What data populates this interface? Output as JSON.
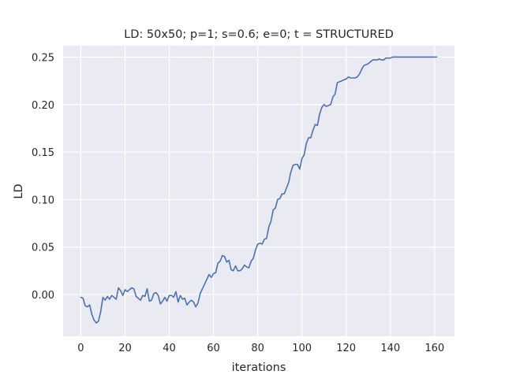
{
  "chart_data": {
    "type": "line",
    "title": "LD: 50x50; p=1; s=0.6; e=0; t = STRUCTURED",
    "xlabel": "iterations",
    "ylabel": "LD",
    "xlim": [
      -8,
      169
    ],
    "ylim": [
      -0.044,
      0.262
    ],
    "xticks": [
      0,
      20,
      40,
      60,
      80,
      100,
      120,
      140,
      160
    ],
    "xtick_labels": [
      "0",
      "20",
      "40",
      "60",
      "80",
      "100",
      "120",
      "140",
      "160"
    ],
    "yticks": [
      0.0,
      0.05,
      0.1,
      0.15,
      0.2,
      0.25
    ],
    "ytick_labels": [
      "0.00",
      "0.05",
      "0.10",
      "0.15",
      "0.20",
      "0.25"
    ],
    "grid": true,
    "background": "#eaeaf2",
    "line_color": "#4c72b0",
    "series": [
      {
        "name": "",
        "x": [
          0,
          1,
          2,
          3,
          4,
          5,
          6,
          7,
          8,
          9,
          10,
          11,
          12,
          13,
          14,
          15,
          16,
          17,
          18,
          19,
          20,
          21,
          22,
          23,
          24,
          25,
          26,
          27,
          28,
          29,
          30,
          31,
          32,
          33,
          34,
          35,
          36,
          37,
          38,
          39,
          40,
          41,
          42,
          43,
          44,
          45,
          46,
          47,
          48,
          49,
          50,
          51,
          52,
          53,
          54,
          55,
          56,
          57,
          58,
          59,
          60,
          61,
          62,
          63,
          64,
          65,
          66,
          67,
          68,
          69,
          70,
          71,
          72,
          73,
          74,
          75,
          76,
          77,
          78,
          79,
          80,
          81,
          82,
          83,
          84,
          85,
          86,
          87,
          88,
          89,
          90,
          91,
          92,
          93,
          94,
          95,
          96,
          97,
          98,
          99,
          100,
          101,
          102,
          103,
          104,
          105,
          106,
          107,
          108,
          109,
          110,
          111,
          112,
          113,
          114,
          115,
          116,
          117,
          118,
          119,
          120,
          121,
          122,
          123,
          124,
          125,
          126,
          127,
          128,
          129,
          130,
          131,
          132,
          133,
          134,
          135,
          136,
          137,
          138,
          139,
          140,
          141,
          142,
          143,
          144,
          145,
          146,
          147,
          148,
          149,
          150,
          151,
          152,
          153,
          154,
          155,
          156,
          157,
          158,
          159,
          160,
          161
        ],
        "y": [
          -0.003,
          -0.004,
          -0.012,
          -0.013,
          -0.011,
          -0.021,
          -0.027,
          -0.03,
          -0.028,
          -0.018,
          -0.003,
          -0.006,
          -0.002,
          -0.005,
          -0.001,
          -0.003,
          -0.005,
          0.007,
          0.004,
          -0.001,
          0.005,
          0.003,
          0.005,
          0.007,
          0.006,
          -0.002,
          -0.004,
          -0.006,
          -0.001,
          -0.002,
          0.006,
          -0.007,
          -0.006,
          0.001,
          0.002,
          -0.001,
          -0.01,
          -0.007,
          -0.003,
          -0.007,
          -0.001,
          -0.001,
          -0.003,
          0.003,
          -0.008,
          -0.001,
          -0.005,
          -0.004,
          -0.011,
          -0.008,
          -0.006,
          -0.008,
          -0.013,
          -0.009,
          0.001,
          0.006,
          0.011,
          0.016,
          0.021,
          0.018,
          0.022,
          0.023,
          0.033,
          0.035,
          0.041,
          0.04,
          0.034,
          0.036,
          0.026,
          0.025,
          0.03,
          0.025,
          0.025,
          0.027,
          0.031,
          0.029,
          0.028,
          0.035,
          0.038,
          0.047,
          0.053,
          0.054,
          0.053,
          0.058,
          0.059,
          0.071,
          0.077,
          0.089,
          0.091,
          0.1,
          0.101,
          0.106,
          0.106,
          0.112,
          0.118,
          0.129,
          0.136,
          0.137,
          0.137,
          0.132,
          0.143,
          0.147,
          0.159,
          0.165,
          0.165,
          0.173,
          0.179,
          0.178,
          0.19,
          0.197,
          0.2,
          0.198,
          0.199,
          0.2,
          0.208,
          0.211,
          0.223,
          0.224,
          0.225,
          0.226,
          0.227,
          0.229,
          0.228,
          0.228,
          0.228,
          0.229,
          0.232,
          0.237,
          0.241,
          0.242,
          0.243,
          0.245,
          0.247,
          0.247,
          0.247,
          0.248,
          0.247,
          0.247,
          0.249,
          0.249,
          0.249,
          0.25,
          0.25,
          0.25,
          0.25,
          0.25,
          0.25,
          0.25,
          0.25,
          0.25,
          0.25,
          0.25,
          0.25,
          0.25,
          0.25,
          0.25,
          0.25,
          0.25,
          0.25,
          0.25,
          0.25,
          0.25
        ]
      }
    ]
  }
}
